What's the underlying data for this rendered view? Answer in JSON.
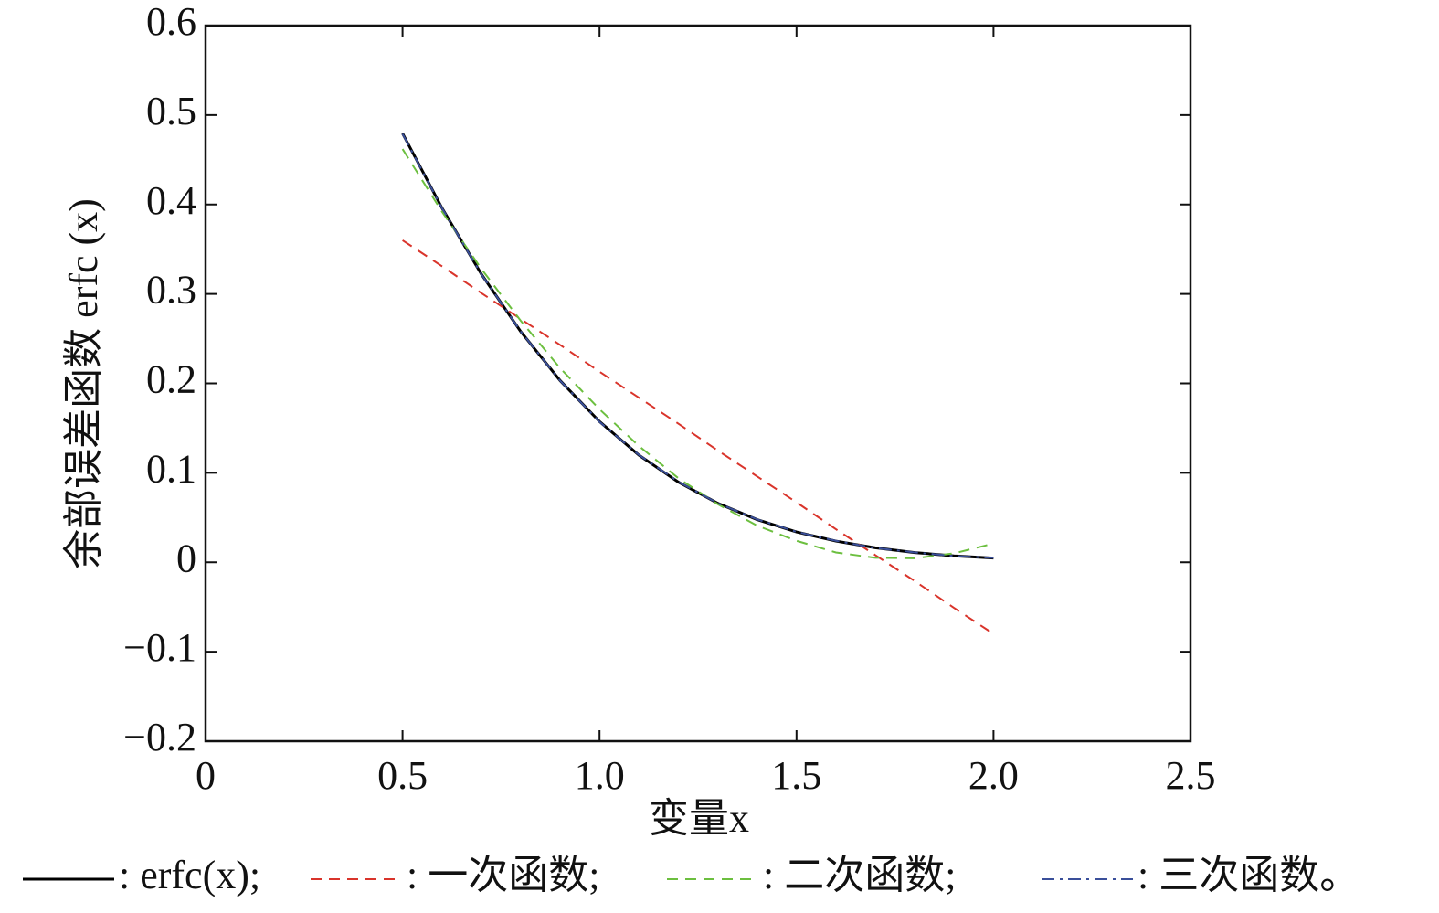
{
  "chart_data": {
    "type": "line",
    "xlabel": "变量x",
    "ylabel": "余部误差函数 erfc (x)",
    "x": [
      0.5,
      0.6,
      0.7,
      0.8,
      0.9,
      1.0,
      1.1,
      1.2,
      1.3,
      1.4,
      1.5,
      1.6,
      1.7,
      1.8,
      1.9,
      2.0
    ],
    "series": [
      {
        "name": ": erfc(x);",
        "color": "#000000",
        "line_style": "solid",
        "values": [
          0.4795,
          0.3961,
          0.3222,
          0.2579,
          0.2031,
          0.1573,
          0.1198,
          0.0897,
          0.066,
          0.0477,
          0.0339,
          0.0237,
          0.0162,
          0.0109,
          0.0072,
          0.0047
        ]
      },
      {
        "name": ": 一次函数;",
        "color": "#d9342b",
        "line_style": "dashed",
        "values": [
          0.36,
          0.331,
          0.301,
          0.272,
          0.243,
          0.213,
          0.184,
          0.155,
          0.125,
          0.096,
          0.067,
          0.037,
          0.008,
          -0.021,
          -0.051,
          -0.08
        ]
      },
      {
        "name": ": 二次函数;",
        "color": "#6cbf3f",
        "line_style": "dashed",
        "values": [
          0.462,
          0.392,
          0.328,
          0.27,
          0.217,
          0.171,
          0.13,
          0.094,
          0.065,
          0.041,
          0.024,
          0.011,
          0.005,
          0.0045,
          0.01,
          0.021
        ]
      },
      {
        "name": ": 三次函数。",
        "color": "#3a4f9a",
        "line_style": "dashdot",
        "values": [
          0.479,
          0.396,
          0.322,
          0.258,
          0.203,
          0.157,
          0.12,
          0.09,
          0.066,
          0.048,
          0.034,
          0.024,
          0.016,
          0.011,
          0.007,
          0.005
        ]
      }
    ],
    "xlim": [
      0,
      2.5
    ],
    "xticks": [
      0,
      0.5,
      {
        "value": 1.0,
        "label": "1.0"
      },
      1.5,
      {
        "value": 2.0,
        "label": "2.0"
      },
      2.5
    ],
    "ylim": [
      -0.2,
      0.6
    ],
    "yticks": [
      {
        "value": -0.2,
        "label": "−0.2"
      },
      {
        "value": -0.1,
        "label": "−0.1"
      },
      0,
      0.1,
      0.2,
      0.3,
      0.4,
      0.5,
      0.6
    ],
    "grid": false,
    "legend": "bottom"
  }
}
